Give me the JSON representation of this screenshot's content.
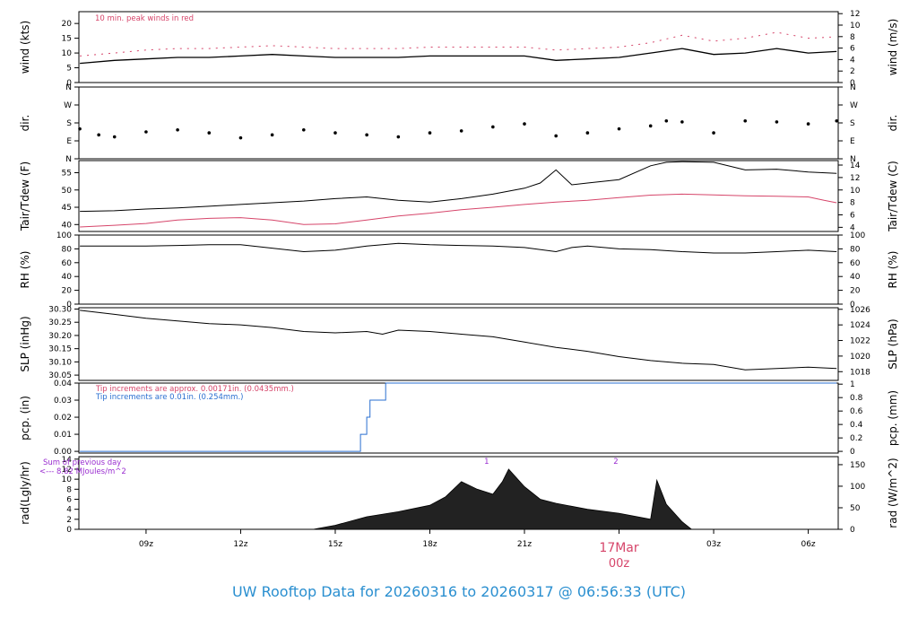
{
  "page": {
    "title": "UW Rooftop Data for 20260316  to  20260317 @ 06:56:33  (UTC)"
  },
  "colors": {
    "series_main": "#000000",
    "series_red": "#d6456a",
    "precip_blue": "#2a6fd0",
    "title_blue": "#2a8fd0",
    "note_purple": "#9a2ed0"
  },
  "x_axis": {
    "ticks": [
      "09z",
      "12z",
      "15z",
      "18z",
      "21z",
      "00z",
      "03z",
      "06z"
    ],
    "tick_hours": [
      9,
      12,
      15,
      18,
      21,
      24,
      27,
      30
    ],
    "range_hours": [
      6.87,
      30.95
    ],
    "date_label": "17Mar",
    "date_sub": "00z"
  },
  "panels": [
    {
      "id": "wind",
      "left_label": "wind (kts)",
      "right_label": "wind (m/s)",
      "left_ticks": [
        "0",
        "5",
        "10",
        "15",
        "20"
      ],
      "right_ticks": [
        "0",
        "2",
        "4",
        "6",
        "8",
        "10",
        "12"
      ],
      "note": "10 min. peak winds in red"
    },
    {
      "id": "dir",
      "left_label": "dir.",
      "right_label": "dir.",
      "left_ticks": [
        "N",
        "E",
        "S",
        "W",
        "N"
      ],
      "right_ticks": [
        "N",
        "E",
        "S",
        "W",
        "N"
      ]
    },
    {
      "id": "temp",
      "left_label": "Tair/Tdew (F)",
      "right_label": "Tair/Tdew (C)",
      "left_ticks": [
        "40",
        "45",
        "50",
        "55"
      ],
      "right_ticks": [
        "4",
        "6",
        "8",
        "10",
        "12",
        "14"
      ]
    },
    {
      "id": "rh",
      "left_label": "RH (%)",
      "right_label": "RH (%)",
      "left_ticks": [
        "0",
        "20",
        "40",
        "60",
        "80",
        "100"
      ],
      "right_ticks": [
        "0",
        "20",
        "40",
        "60",
        "80",
        "100"
      ]
    },
    {
      "id": "slp",
      "left_label": "SLP (inHg)",
      "right_label": "SLP (hPa)",
      "left_ticks": [
        "30.05",
        "30.10",
        "30.15",
        "30.20",
        "30.25",
        "30.30"
      ],
      "right_ticks": [
        "1018",
        "1020",
        "1022",
        "1024",
        "1026"
      ]
    },
    {
      "id": "pcp",
      "left_label": "pcp. (in)",
      "right_label": "pcp. (mm)",
      "left_ticks": [
        "0.00",
        "0.01",
        "0.02",
        "0.03",
        "0.04"
      ],
      "right_ticks": [
        "0",
        "0.2",
        "0.4",
        "0.6",
        "0.8",
        "1"
      ],
      "note1": "Tip increments are approx. 0.00171in. (0.0435mm.)",
      "note2": "Tip increments are 0.01in. (0.254mm.)"
    },
    {
      "id": "rad",
      "left_label": "rad(Lgly/hr)",
      "right_label": "rad (W/m^2)",
      "left_ticks": [
        "0",
        "2",
        "4",
        "6",
        "8",
        "10",
        "12",
        "14"
      ],
      "right_ticks": [
        "0",
        "50",
        "100",
        "150"
      ],
      "note1": "Sum of previous day",
      "note2": "<--- 8.82 MJoules/m^2",
      "markers": [
        "1",
        "2"
      ],
      "marker_hours": [
        19.8,
        23.9
      ]
    }
  ],
  "chart_data": [
    {
      "type": "line",
      "panel": "wind",
      "x_unit": "hour UTC (16 Mar; 24 = 00z 17 Mar)",
      "ylim": [
        0,
        24
      ],
      "series": [
        {
          "values_x": [
            6.9,
            8,
            9,
            10,
            11,
            12,
            13,
            14,
            15,
            16,
            17,
            18,
            19,
            20,
            21,
            22,
            23,
            24,
            25,
            26,
            27,
            28,
            29,
            30,
            30.9
          ],
          "values_y": [
            6.5,
            7.5,
            8,
            8.5,
            8.5,
            9,
            9.5,
            9,
            8.5,
            8.5,
            8.5,
            9,
            9,
            9,
            9,
            7.5,
            8,
            8.5,
            10,
            11.5,
            9.5,
            10,
            11.5,
            10,
            10.5
          ]
        },
        {
          "values_x": [
            6.9,
            8,
            9,
            10,
            11,
            12,
            13,
            14,
            15,
            16,
            17,
            18,
            19,
            20,
            21,
            22,
            23,
            24,
            25,
            26,
            27,
            28,
            29,
            30,
            30.9
          ],
          "values_y": [
            9,
            10,
            11,
            11.5,
            11.5,
            12,
            12.5,
            12,
            11.5,
            11.5,
            11.5,
            12,
            12,
            12,
            12,
            11,
            11.5,
            12,
            13.5,
            16,
            14,
            15,
            17,
            15,
            15.5
          ]
        }
      ]
    },
    {
      "type": "scatter",
      "panel": "dir",
      "ylim": [
        0,
        360
      ],
      "series": [
        {
          "values_x": [
            6.9,
            7.5,
            8,
            9,
            10,
            11,
            12,
            13,
            14,
            15,
            16,
            17,
            18,
            19,
            20,
            21,
            22,
            23,
            24,
            25,
            25.5,
            26,
            27,
            28,
            29,
            30,
            30.9
          ],
          "values_y": [
            150,
            120,
            110,
            135,
            145,
            130,
            105,
            120,
            145,
            130,
            120,
            110,
            130,
            140,
            160,
            175,
            115,
            130,
            150,
            165,
            190,
            185,
            130,
            190,
            185,
            175,
            190
          ]
        }
      ]
    },
    {
      "type": "line",
      "panel": "temp",
      "ylim": [
        38,
        58.5
      ],
      "series": [
        {
          "values_x": [
            6.9,
            8,
            9,
            10,
            11,
            12,
            13,
            14,
            15,
            16,
            17,
            18,
            19,
            20,
            21,
            21.5,
            22,
            22.5,
            23,
            24,
            25,
            25.5,
            26,
            27,
            28,
            29,
            30,
            30.9
          ],
          "values_y": [
            43.8,
            44,
            44.5,
            44.8,
            45.3,
            45.8,
            46.3,
            46.8,
            47.5,
            48,
            47,
            46.5,
            47.5,
            48.8,
            50.5,
            52,
            55.8,
            51.5,
            52,
            53,
            57,
            58,
            58.2,
            58,
            55.8,
            56,
            55.2,
            54.8
          ]
        },
        {
          "values_x": [
            6.9,
            8,
            9,
            10,
            11,
            12,
            13,
            14,
            15,
            16,
            17,
            18,
            19,
            20,
            21,
            22,
            23,
            24,
            25,
            26,
            27,
            28,
            29,
            30,
            30.5,
            30.9
          ],
          "values_y": [
            39.3,
            39.8,
            40.3,
            41.3,
            41.8,
            42,
            41.3,
            40,
            40.2,
            41.3,
            42.5,
            43.3,
            44.3,
            45,
            45.8,
            46.5,
            47,
            47.8,
            48.5,
            48.8,
            48.6,
            48.3,
            48.2,
            48,
            47,
            46.3
          ]
        }
      ]
    },
    {
      "type": "line",
      "panel": "rh",
      "ylim": [
        0,
        100
      ],
      "series": [
        {
          "values_x": [
            6.9,
            8,
            9,
            10,
            11,
            12,
            13,
            14,
            15,
            16,
            17,
            18,
            19,
            20,
            21,
            22,
            22.5,
            23,
            24,
            25,
            26,
            27,
            28,
            29,
            30,
            30.9
          ],
          "values_y": [
            84,
            84,
            84,
            85,
            86,
            86,
            81,
            76,
            78,
            84,
            88,
            86,
            85,
            84,
            82,
            76,
            82,
            84,
            80,
            79,
            76,
            74,
            74,
            76,
            78,
            76
          ]
        }
      ]
    },
    {
      "type": "line",
      "panel": "slp",
      "ylim": [
        30.03,
        30.305
      ],
      "series": [
        {
          "values_x": [
            6.9,
            8,
            9,
            10,
            11,
            12,
            13,
            14,
            15,
            16,
            16.5,
            17,
            18,
            19,
            20,
            21,
            22,
            23,
            24,
            25,
            26,
            27,
            28,
            29,
            30,
            30.9
          ],
          "values_y": [
            30.295,
            30.28,
            30.265,
            30.255,
            30.245,
            30.24,
            30.23,
            30.215,
            30.21,
            30.215,
            30.205,
            30.22,
            30.215,
            30.205,
            30.195,
            30.175,
            30.155,
            30.14,
            30.12,
            30.105,
            30.095,
            30.09,
            30.07,
            30.075,
            30.08,
            30.075
          ]
        }
      ]
    },
    {
      "type": "line",
      "panel": "pcp",
      "ylim": [
        -0.001,
        0.04
      ],
      "series": [
        {
          "values_x": [
            6.9,
            15.8,
            15.8,
            16.0,
            16.0,
            16.1,
            16.1,
            16.3,
            16.3,
            16.6,
            16.6,
            30.9
          ],
          "values_y": [
            0.0,
            0.0,
            0.01,
            0.01,
            0.02,
            0.02,
            0.03,
            0.03,
            0.03,
            0.03,
            0.04,
            0.04
          ]
        }
      ]
    },
    {
      "type": "area",
      "panel": "rad",
      "ylim": [
        0,
        14
      ],
      "series": [
        {
          "values_x": [
            14.3,
            15,
            16,
            17,
            18,
            18.5,
            19,
            19.5,
            20,
            20.3,
            20.5,
            21,
            21.5,
            22,
            23,
            24,
            25,
            25.2,
            25.5,
            26,
            26.3
          ],
          "values_y": [
            0,
            0.8,
            2.5,
            3.5,
            4.8,
            6.5,
            9.5,
            8,
            7,
            9.5,
            12,
            8.5,
            6,
            5.2,
            4,
            3.2,
            2,
            9.8,
            5,
            1.5,
            0
          ]
        }
      ]
    }
  ]
}
